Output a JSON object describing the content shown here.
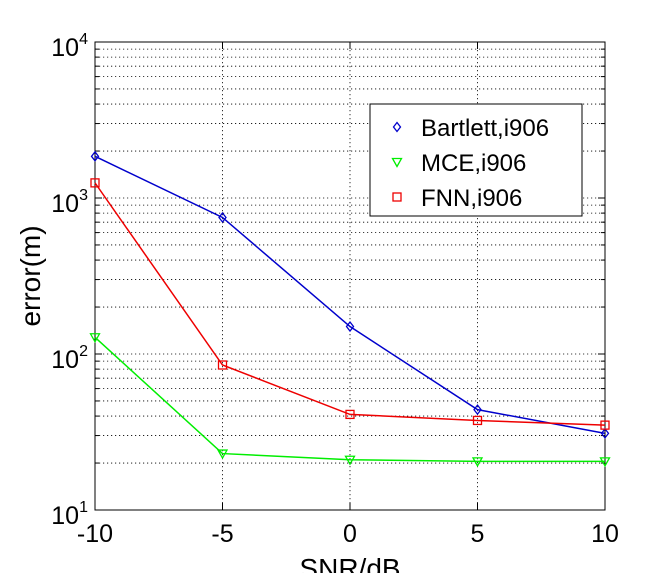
{
  "chart_data": {
    "type": "line",
    "xlabel": "SNR/dB",
    "ylabel": "error(m)",
    "x": [
      -10,
      -5,
      0,
      5,
      10
    ],
    "xticks": [
      "-10",
      "-5",
      "0",
      "5",
      "10"
    ],
    "yticks": [
      {
        "base": "10",
        "exp": "1",
        "value": 10
      },
      {
        "base": "10",
        "exp": "2",
        "value": 100
      },
      {
        "base": "10",
        "exp": "3",
        "value": 1000
      },
      {
        "base": "10",
        "exp": "4",
        "value": 10000
      }
    ],
    "xlim": [
      -10,
      10
    ],
    "ylim": [
      10,
      10000
    ],
    "yscale": "log",
    "grid": true,
    "legend_position": "top-right",
    "series": [
      {
        "name": "Bartlett,i906",
        "color": "#0000cc",
        "marker": "diamond",
        "values": [
          1850,
          750,
          150,
          44,
          31
        ]
      },
      {
        "name": "MCE,i906",
        "color": "#00ee00",
        "marker": "triangle-down",
        "values": [
          128,
          23,
          21,
          20.5,
          20.5
        ]
      },
      {
        "name": "FNN,i906",
        "color": "#ee0000",
        "marker": "square",
        "values": [
          1250,
          85,
          41,
          37.5,
          35
        ]
      }
    ]
  }
}
